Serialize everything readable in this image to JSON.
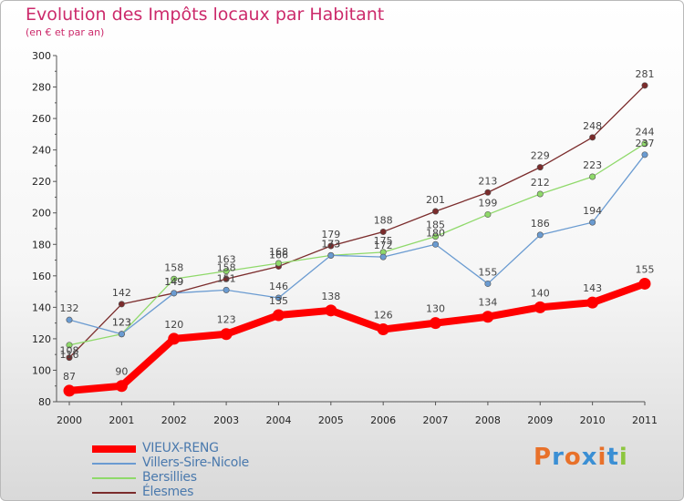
{
  "title": "Evolution des Impôts locaux par Habitant",
  "subtitle": "(en € et par an)",
  "logo_text": "Proxiti",
  "logo_colors": [
    "#e8712a",
    "#3b8fd4",
    "#e8712a",
    "#3b8fd4",
    "#e8712a",
    "#3b8fd4",
    "#8dc63f"
  ],
  "chart_data": {
    "type": "line",
    "title": "Evolution des Impôts locaux par Habitant",
    "subtitle": "(en € et par an)",
    "x": [
      "2000",
      "2001",
      "2002",
      "2003",
      "2004",
      "2005",
      "2006",
      "2007",
      "2008",
      "2009",
      "2010",
      "2011"
    ],
    "ylim": [
      80,
      300
    ],
    "yticks": [
      80,
      100,
      120,
      140,
      160,
      180,
      200,
      220,
      240,
      260,
      280,
      300
    ],
    "grid": false,
    "legend_position": "bottom-left",
    "series": [
      {
        "name": "VIEUX-RENG",
        "color": "#ff0000",
        "values": [
          87,
          90,
          120,
          123,
          135,
          138,
          126,
          130,
          134,
          140,
          143,
          155
        ]
      },
      {
        "name": "Villers-Sire-Nicole",
        "color": "#6a9bd1",
        "values": [
          132,
          123,
          149,
          151,
          146,
          173,
          172,
          180,
          155,
          186,
          194,
          237
        ]
      },
      {
        "name": "Bersillies",
        "color": "#8fd96a",
        "values": [
          116,
          123,
          158,
          163,
          168,
          173,
          175,
          185,
          199,
          212,
          223,
          244
        ]
      },
      {
        "name": "Élesmes",
        "color": "#7b2c2c",
        "values": [
          108,
          142,
          149,
          158,
          166,
          179,
          188,
          201,
          213,
          229,
          248,
          281
        ]
      }
    ]
  }
}
